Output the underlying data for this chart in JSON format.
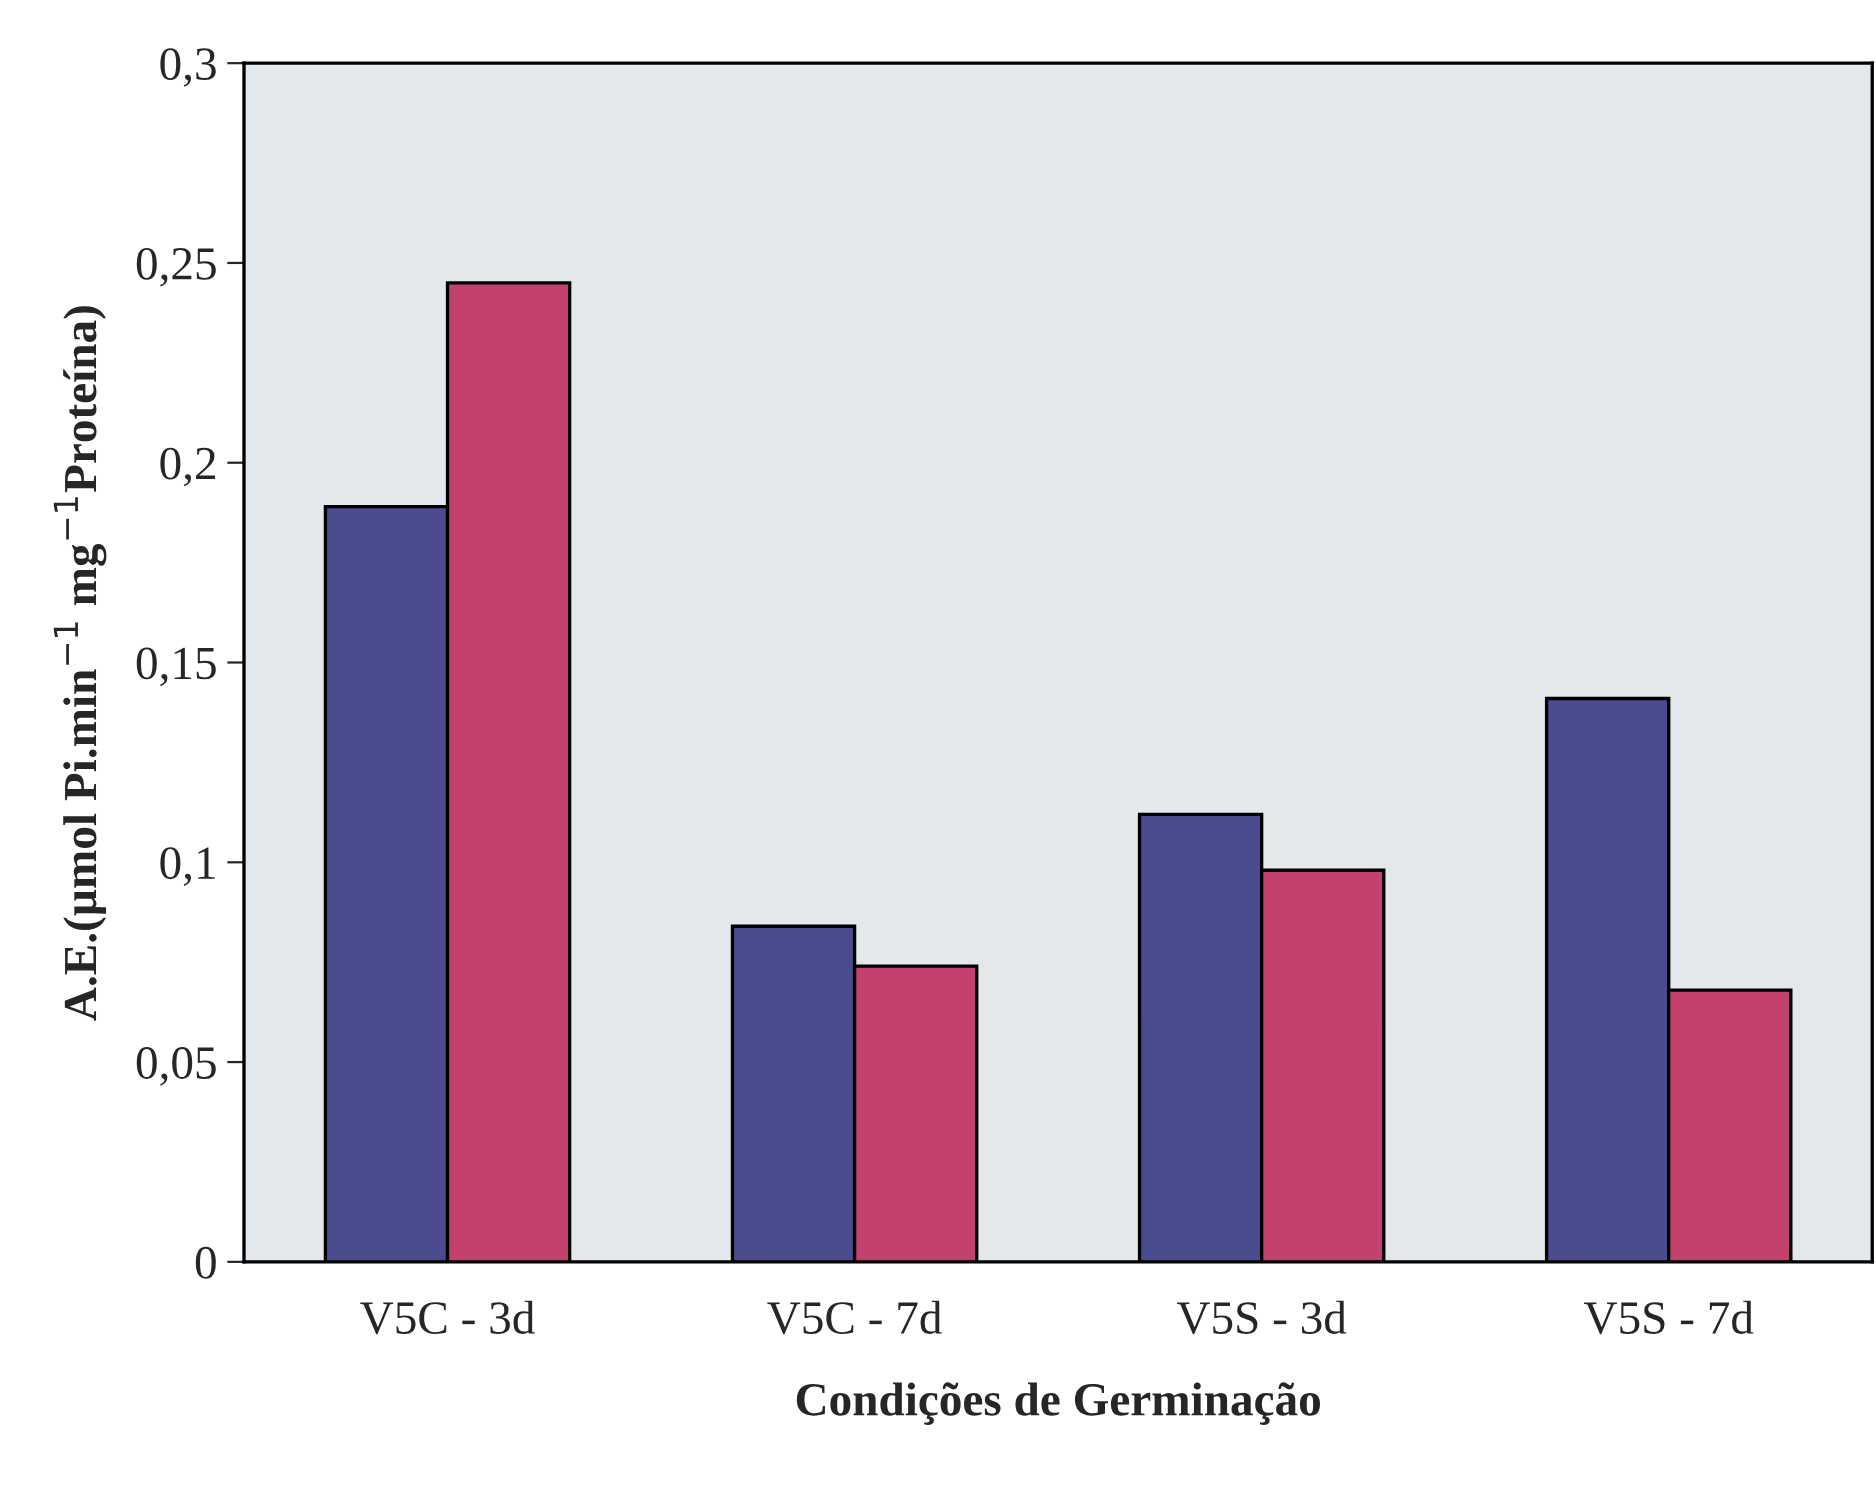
{
  "chart_data": {
    "type": "bar",
    "xlabel": "Condições de Germinação",
    "ylabel": "A.E.(µmol Pi.min$^{−1}$ mg$^{−1}$Proteína)",
    "categories": [
      "V5C - 3d",
      "V5C - 7d",
      "V5S - 3d",
      "V5S - 7d"
    ],
    "series": [
      {
        "color": "#4b4b8f",
        "values": [
          0.189,
          0.084,
          0.112,
          0.141
        ]
      },
      {
        "color": "#c2416f",
        "values": [
          0.245,
          0.074,
          0.098,
          0.068
        ]
      }
    ],
    "ylim": [
      0,
      0.3
    ],
    "yticks": [
      0,
      {
        "value": 0.05,
        "label": "0,05"
      },
      {
        "value": 0.1,
        "label": "0,1"
      },
      {
        "value": 0.15,
        "label": "0,15"
      },
      {
        "value": 0.2,
        "label": "0,2"
      },
      {
        "value": 0.25,
        "label": "0,25"
      },
      {
        "value": 0.3,
        "label": "0,3"
      }
    ],
    "grid": false,
    "legend": false
  }
}
